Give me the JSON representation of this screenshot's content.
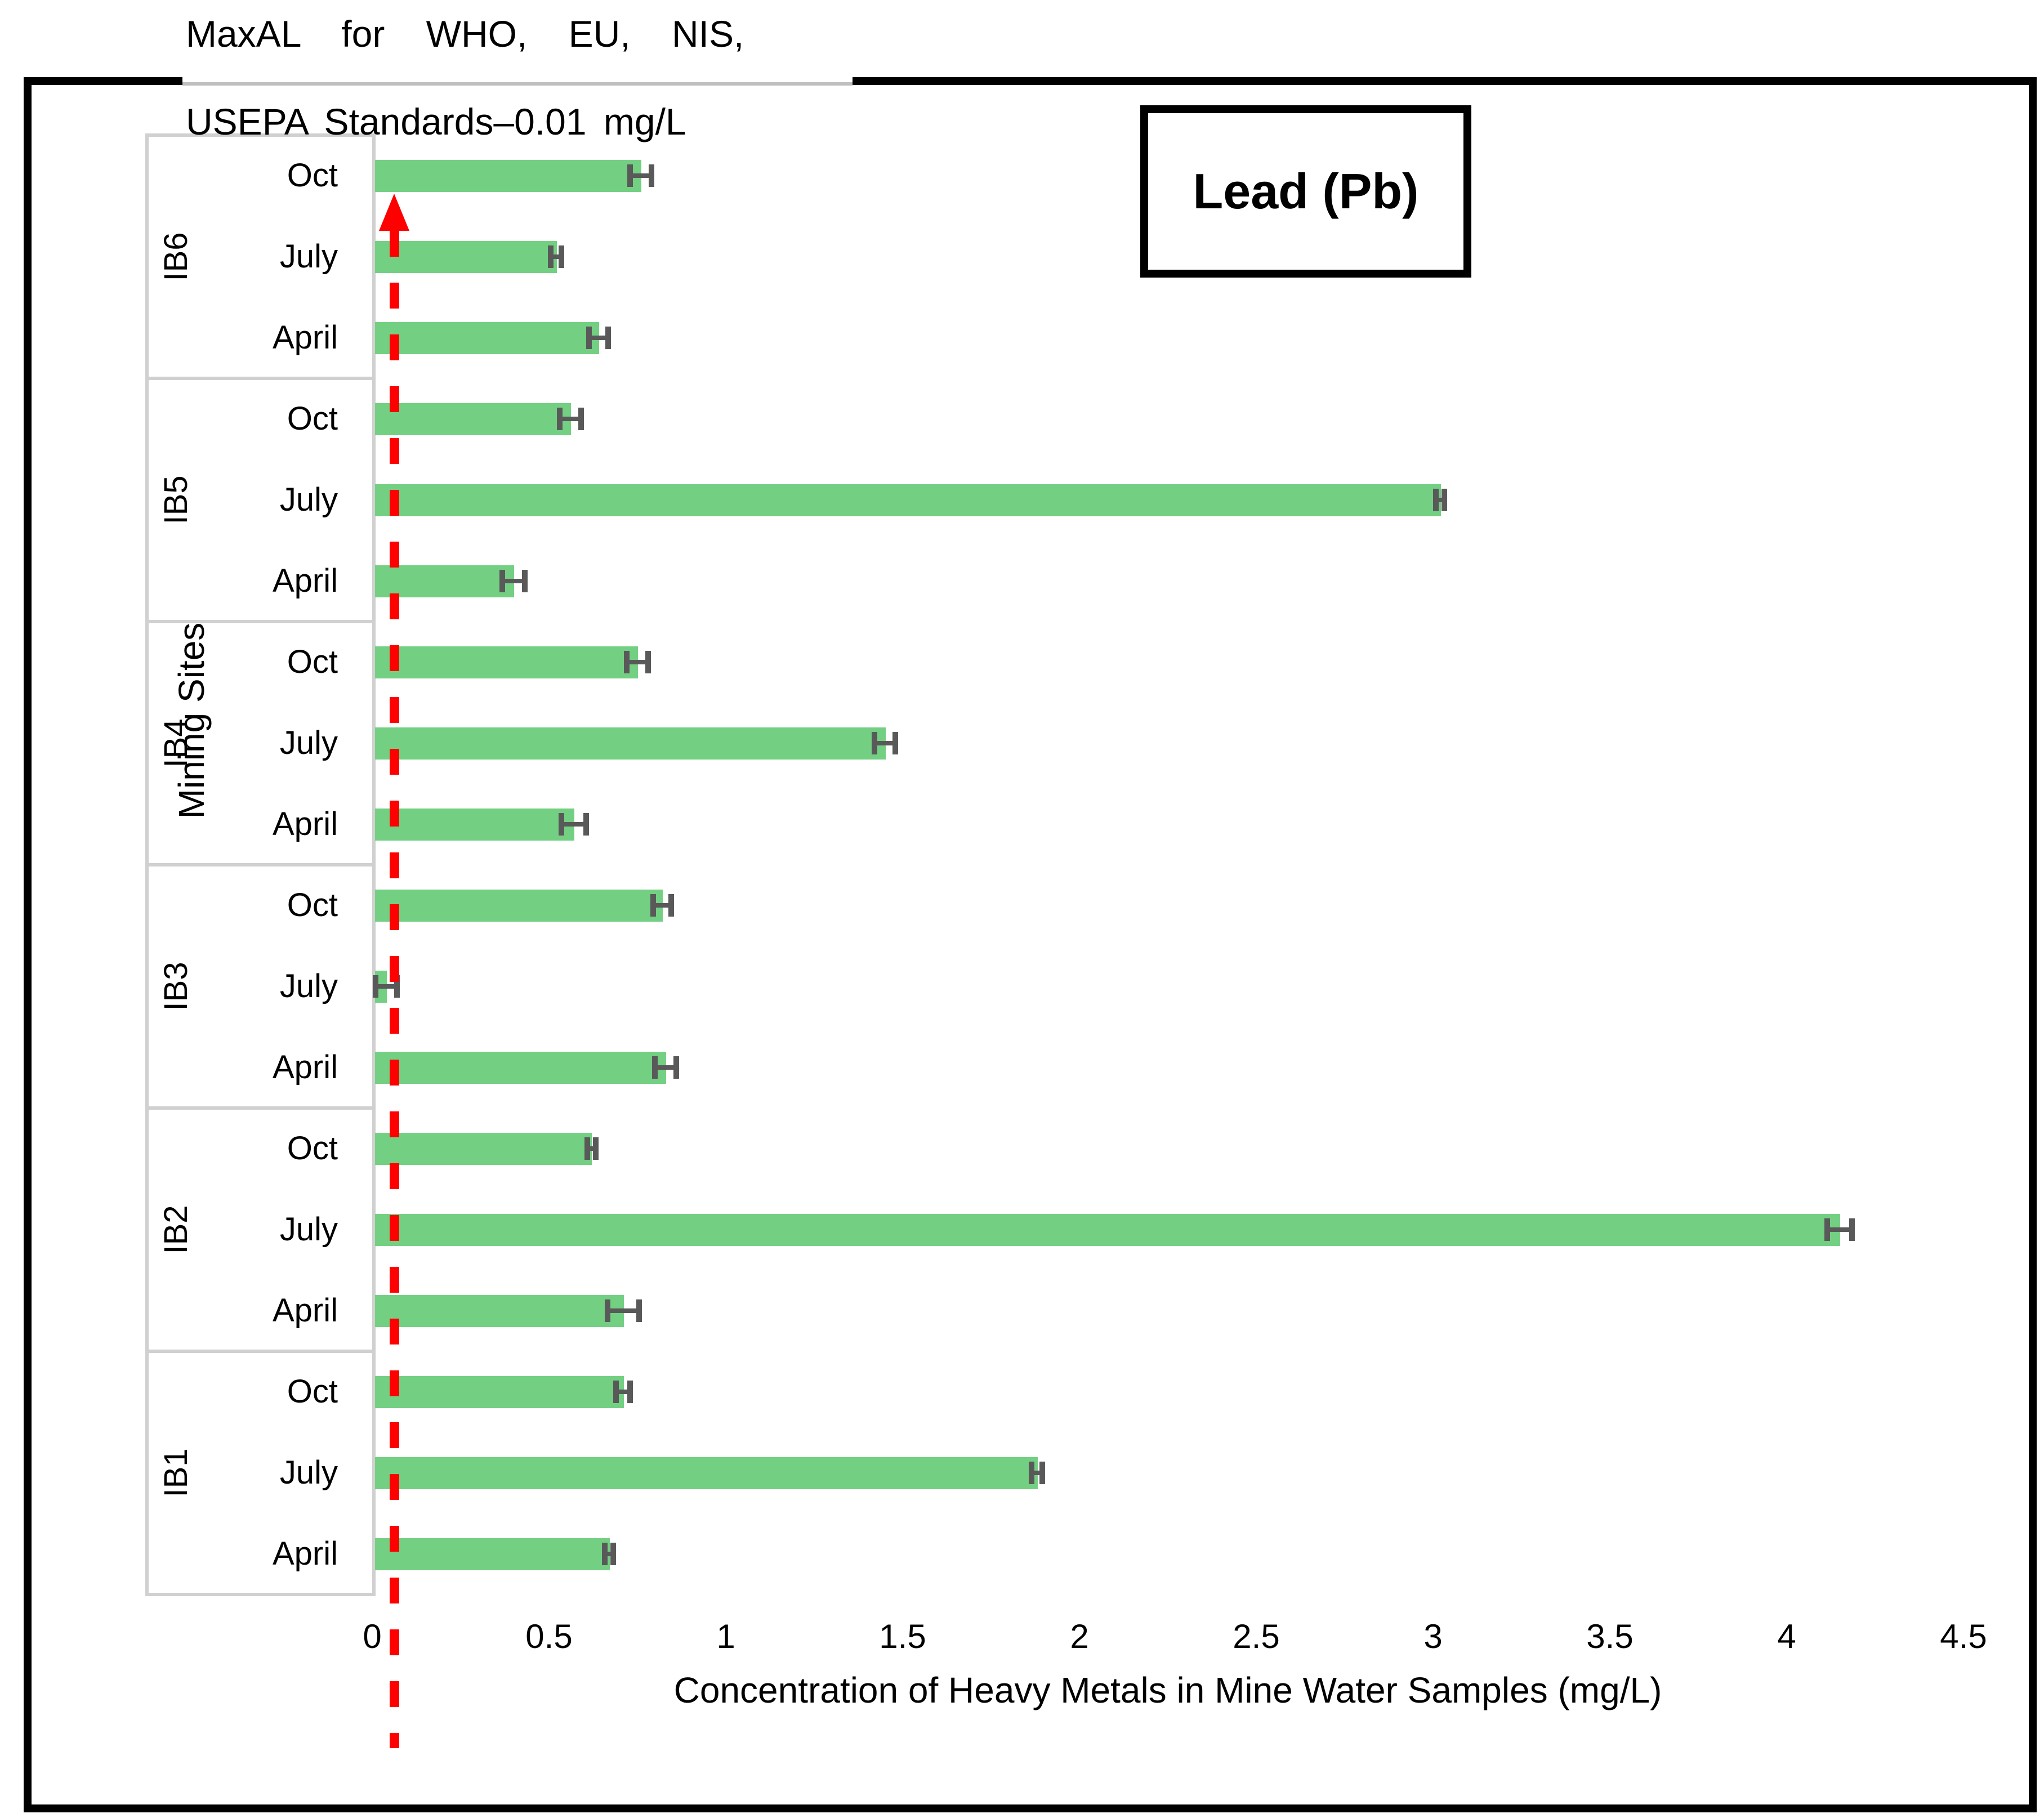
{
  "annotation": {
    "line1": "MaxAL for WHO, EU, NIS,",
    "line2": "USEPA Standards–0.01 mg/L"
  },
  "legend_box": {
    "label": "Lead (Pb)"
  },
  "axis": {
    "x_label": "Concentration of Heavy Metals in Mine Water Samples (mg/L)",
    "y_label": "Mining Sites",
    "x_ticks": [
      "0",
      "0.5",
      "1",
      "1.5",
      "2",
      "2.5",
      "3",
      "3.5",
      "4",
      "4.5"
    ]
  },
  "chart_data": {
    "type": "bar",
    "orientation": "horizontal",
    "title": "Lead (Pb)",
    "xlabel": "Concentration of Heavy Metals in Mine Water Samples (mg/L)",
    "ylabel": "Mining Sites",
    "xlim": [
      0,
      4.5
    ],
    "x_tick_step": 0.5,
    "grid": false,
    "legend_position": "none",
    "bar_color": "#73D083",
    "error_bar_color": "#595959",
    "category_line_color": "#d0d0d0",
    "reference_line": {
      "meaning": "MaxAL for WHO, EU, NIS, USEPA Standards–0.01 mg/L",
      "value": 0.01,
      "color": "#FF0000",
      "style": "red dashed vertical line with upward arrow near x=0"
    },
    "groups": [
      {
        "site": "IB6",
        "bars": [
          {
            "month": "Oct",
            "value": 0.76,
            "error": 0.03
          },
          {
            "month": "July",
            "value": 0.52,
            "error": 0.015
          },
          {
            "month": "April",
            "value": 0.64,
            "error": 0.027
          }
        ]
      },
      {
        "site": "IB5",
        "bars": [
          {
            "month": "Oct",
            "value": 0.56,
            "error": 0.03
          },
          {
            "month": "July",
            "value": 3.02,
            "error": 0.012
          },
          {
            "month": "April",
            "value": 0.4,
            "error": 0.032
          }
        ]
      },
      {
        "site": "IB4",
        "bars": [
          {
            "month": "Oct",
            "value": 0.75,
            "error": 0.03
          },
          {
            "month": "July",
            "value": 1.45,
            "error": 0.03
          },
          {
            "month": "April",
            "value": 0.57,
            "error": 0.035
          }
        ]
      },
      {
        "site": "IB3",
        "bars": [
          {
            "month": "Oct",
            "value": 0.82,
            "error": 0.025
          },
          {
            "month": "July",
            "value": 0.04,
            "error": 0.03
          },
          {
            "month": "April",
            "value": 0.83,
            "error": 0.03
          }
        ]
      },
      {
        "site": "IB2",
        "bars": [
          {
            "month": "Oct",
            "value": 0.62,
            "error": 0.012
          },
          {
            "month": "July",
            "value": 4.15,
            "error": 0.035
          },
          {
            "month": "April",
            "value": 0.71,
            "error": 0.045
          }
        ]
      },
      {
        "site": "IB1",
        "bars": [
          {
            "month": "Oct",
            "value": 0.71,
            "error": 0.02
          },
          {
            "month": "July",
            "value": 1.88,
            "error": 0.015
          },
          {
            "month": "April",
            "value": 0.67,
            "error": 0.012
          }
        ]
      }
    ]
  }
}
